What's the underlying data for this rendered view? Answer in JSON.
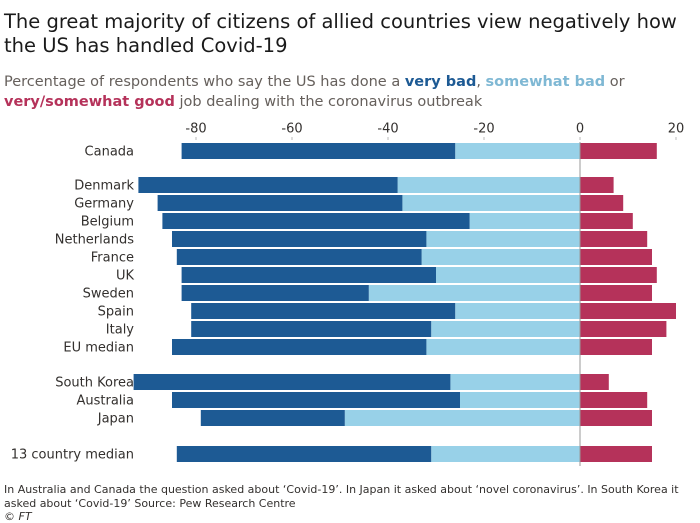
{
  "chart_data": {
    "type": "diverging-bar",
    "title": "The great majority of citizens of allied countries view negatively how the US has handled Covid-19",
    "subtitle": [
      "Percentage of respondents who say the US has done a",
      ",",
      "or",
      "job dealing with the coronavirus outbreak"
    ],
    "categories": [
      "Canada",
      "Denmark",
      "Germany",
      "Belgium",
      "Netherlands",
      "France",
      "UK",
      "Sweden",
      "Spain",
      "Italy",
      "EU median",
      "South Korea",
      "Australia",
      "Japan",
      "13 country median"
    ],
    "series": [
      {
        "name": "very bad",
        "color": "#1d5a94",
        "values": [
          -57,
          -54,
          -51,
          -64,
          -53,
          -51,
          -53,
          -39,
          -55,
          -50,
          -53,
          -66,
          -60,
          -30,
          -53
        ]
      },
      {
        "name": "somewhat bad",
        "color": "#98d1e8",
        "values": [
          -26,
          -38,
          -37,
          -23,
          -32,
          -33,
          -30,
          -44,
          -26,
          -31,
          -32,
          -27,
          -25,
          -49,
          -31
        ]
      },
      {
        "name": "very/somewhat good",
        "color": "#b5325a",
        "values": [
          16,
          7,
          9,
          11,
          14,
          15,
          16,
          15,
          20,
          18,
          15,
          6,
          14,
          15,
          15
        ]
      }
    ],
    "xlim": [
      -95,
      22
    ],
    "xticks": [
      -80,
      -60,
      -40,
      -20,
      0,
      20
    ],
    "note": "In Australia and Canada the question asked about ‘Covid-19’. In Japan it asked about ‘novel coronavirus’. In South Korea it asked about ‘Covid-19’ Source: Pew Research Centre",
    "source": "© FT"
  }
}
